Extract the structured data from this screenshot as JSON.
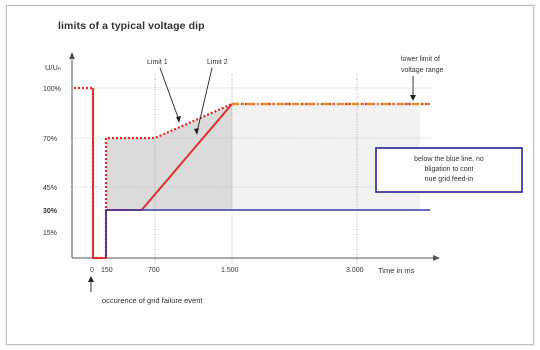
{
  "chart_data": {
    "type": "line",
    "title": "limits of a typical voltage dip",
    "ylabel": "U/Uₙ",
    "xlabel": "Time in ms",
    "x_ticks": [
      {
        "value": 0,
        "label": "0"
      },
      {
        "value": 150,
        "label": "150"
      },
      {
        "value": 700,
        "label": "700"
      },
      {
        "value": 1500,
        "label": "1.500"
      },
      {
        "value": 3000,
        "label": "3.000"
      }
    ],
    "y_ticks": [
      {
        "value": 100,
        "label": "100%",
        "color": "#333333"
      },
      {
        "value": 70,
        "label": "70%",
        "color": "#333333"
      },
      {
        "value": 45,
        "label": "45%",
        "color": "#333333"
      },
      {
        "value": 30,
        "label": "30%",
        "color": "#3a3aa8"
      },
      {
        "value": 15,
        "label": "15%",
        "color": "#333333"
      }
    ],
    "grid_x": [
      700,
      1500,
      3000
    ],
    "grid_y": [
      100,
      70,
      45
    ],
    "series": [
      {
        "name": "Limit 1",
        "style": "dotted",
        "color": "#e03030",
        "x": [
          -150,
          0,
          0,
          150,
          150,
          700,
          1500,
          3500
        ],
        "y": [
          100,
          100,
          0,
          0,
          70,
          70,
          90,
          90
        ]
      },
      {
        "name": "Limit 2",
        "style": "solid",
        "color": "#e03030",
        "x": [
          0,
          0,
          0,
          150,
          150,
          550,
          1500
        ],
        "y": [
          100,
          0,
          0,
          0,
          30,
          30,
          90
        ]
      },
      {
        "style": "solid",
        "color": "#3a3aa8",
        "x": [
          150,
          150,
          3500
        ],
        "y": [
          0,
          30,
          30
        ]
      },
      {
        "style": "dashdot",
        "color": "#f08a1c",
        "x": [
          1500,
          3500
        ],
        "y": [
          90,
          90
        ]
      }
    ],
    "annotations": {
      "lower_limit": "lower limit of voltage range",
      "blue_box": "below the blue line, no obligation to continue grid feed-in",
      "event": "occurence of grid failure event"
    },
    "colors": {
      "red": "#e03030",
      "blue": "#3a3aa8",
      "orange": "#f08a1c",
      "shade": "#cfcfcf"
    }
  }
}
